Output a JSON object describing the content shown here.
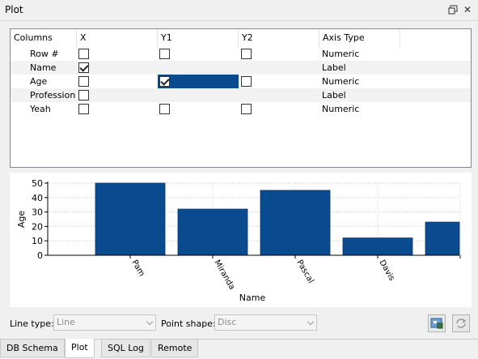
{
  "window": {
    "title": "Plot"
  },
  "table": {
    "headers": [
      "Columns",
      "X",
      "Y1",
      "Y2",
      "Axis Type"
    ],
    "rows": [
      {
        "name": "Row #",
        "x": false,
        "y1": false,
        "y2": false,
        "has_y": true,
        "axis": "Numeric"
      },
      {
        "name": "Name",
        "x": true,
        "y1": false,
        "y2": false,
        "has_y": false,
        "axis": "Label"
      },
      {
        "name": "Age",
        "x": false,
        "y1": true,
        "y2": false,
        "has_y": true,
        "axis": "Numeric",
        "y1_selected": true,
        "y1_color": "#0a4a8f"
      },
      {
        "name": "Profession",
        "x": false,
        "y1": false,
        "y2": false,
        "has_y": false,
        "axis": "Label"
      },
      {
        "name": "Yeah",
        "x": false,
        "y1": false,
        "y2": false,
        "has_y": true,
        "axis": "Numeric"
      }
    ]
  },
  "chart_data": {
    "type": "bar",
    "categories": [
      "Pam",
      "Miranda",
      "Pascal",
      "Davis",
      ""
    ],
    "values": [
      50,
      32,
      45,
      12,
      23
    ],
    "xlabel": "Name",
    "ylabel": "Age",
    "ylim": [
      0,
      50
    ],
    "yticks": [
      0,
      10,
      20,
      30,
      40,
      50
    ],
    "grid": true,
    "bar_color": "#0a4a8f"
  },
  "controls": {
    "line_type_label": "Line type:",
    "line_type_value": "Line",
    "point_shape_label": "Point shape:",
    "point_shape_value": "Disc"
  },
  "tabs": [
    {
      "label": "DB Schema",
      "active": false
    },
    {
      "label": "Plot",
      "active": true
    },
    {
      "label": "SQL Log",
      "active": false
    },
    {
      "label": "Remote",
      "active": false
    }
  ]
}
